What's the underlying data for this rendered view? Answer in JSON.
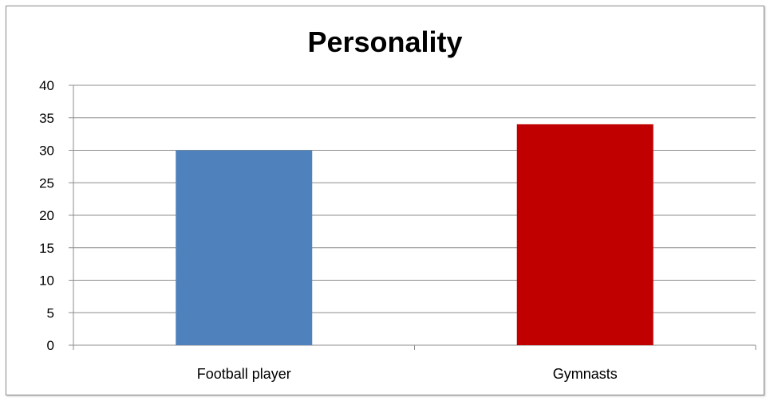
{
  "chart_data": {
    "type": "bar",
    "title": "Personality",
    "categories": [
      "Football player",
      "Gymnasts"
    ],
    "values": [
      30,
      34
    ],
    "bar_colors": [
      "#4f81bd",
      "#c00000"
    ],
    "ylim": [
      0,
      40
    ],
    "y_ticks": [
      "0",
      "5",
      "10",
      "15",
      "20",
      "25",
      "30",
      "35",
      "40"
    ],
    "grid": true,
    "legend": "none",
    "xlabel": "",
    "ylabel": ""
  }
}
